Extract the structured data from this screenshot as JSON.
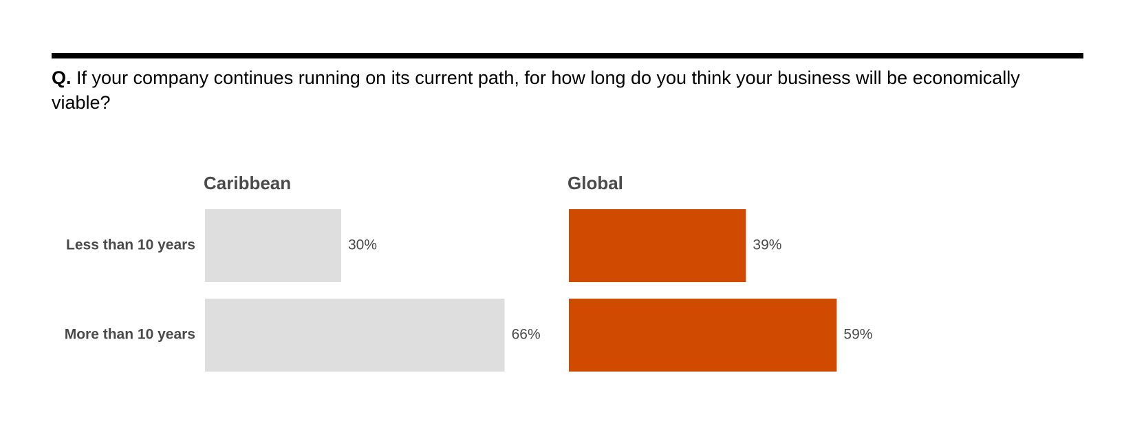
{
  "question": {
    "prefix": "Q.",
    "text": "If your company continues running on its current path, for how long do you think your business will be economically viable?"
  },
  "chart_data": {
    "type": "bar",
    "orientation": "horizontal",
    "unit": "%",
    "categories": [
      "Less than 10 years",
      "More than 10 years"
    ],
    "series": [
      {
        "name": "Caribbean",
        "values": [
          30,
          66
        ],
        "color": "#dedede"
      },
      {
        "name": "Global",
        "values": [
          39,
          59
        ],
        "color": "#d04a02"
      }
    ],
    "value_labels": [
      [
        "30%",
        "66%"
      ],
      [
        "39%",
        "59%"
      ]
    ],
    "xlim": [
      0,
      100
    ],
    "grid": false,
    "legend": "none"
  }
}
